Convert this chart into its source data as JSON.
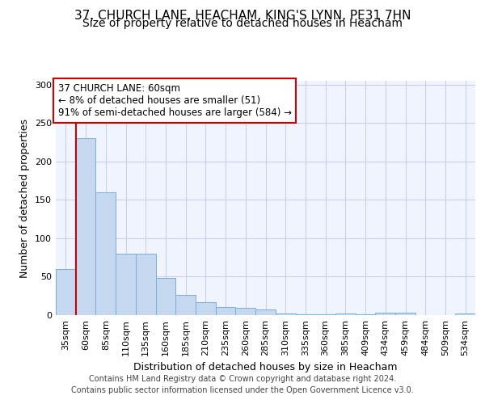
{
  "title_line1": "37, CHURCH LANE, HEACHAM, KING'S LYNN, PE31 7HN",
  "title_line2": "Size of property relative to detached houses in Heacham",
  "xlabel": "Distribution of detached houses by size in Heacham",
  "ylabel": "Number of detached properties",
  "categories": [
    "35sqm",
    "60sqm",
    "85sqm",
    "110sqm",
    "135sqm",
    "160sqm",
    "185sqm",
    "210sqm",
    "235sqm",
    "260sqm",
    "285sqm",
    "310sqm",
    "335sqm",
    "360sqm",
    "385sqm",
    "409sqm",
    "434sqm",
    "459sqm",
    "484sqm",
    "509sqm",
    "534sqm"
  ],
  "values": [
    60,
    230,
    160,
    80,
    80,
    48,
    26,
    17,
    11,
    9,
    7,
    2,
    1,
    1,
    2,
    1,
    3,
    3,
    0,
    0,
    2
  ],
  "bar_color": "#c5d8f0",
  "bar_edge_color": "#7aafd4",
  "vline_color": "#cc0000",
  "annotation_text": "37 CHURCH LANE: 60sqm\n← 8% of detached houses are smaller (51)\n91% of semi-detached houses are larger (584) →",
  "annotation_box_color": "white",
  "annotation_box_edge": "#cc0000",
  "ylim": [
    0,
    305
  ],
  "yticks": [
    0,
    50,
    100,
    150,
    200,
    250,
    300
  ],
  "footer_line1": "Contains HM Land Registry data © Crown copyright and database right 2024.",
  "footer_line2": "Contains public sector information licensed under the Open Government Licence v3.0.",
  "bg_color": "#f0f4ff",
  "grid_color": "#c8d0e8",
  "title1_fontsize": 11,
  "title2_fontsize": 10,
  "ylabel_fontsize": 9,
  "xlabel_fontsize": 9,
  "tick_fontsize": 8,
  "ann_fontsize": 8.5,
  "footer_fontsize": 7
}
